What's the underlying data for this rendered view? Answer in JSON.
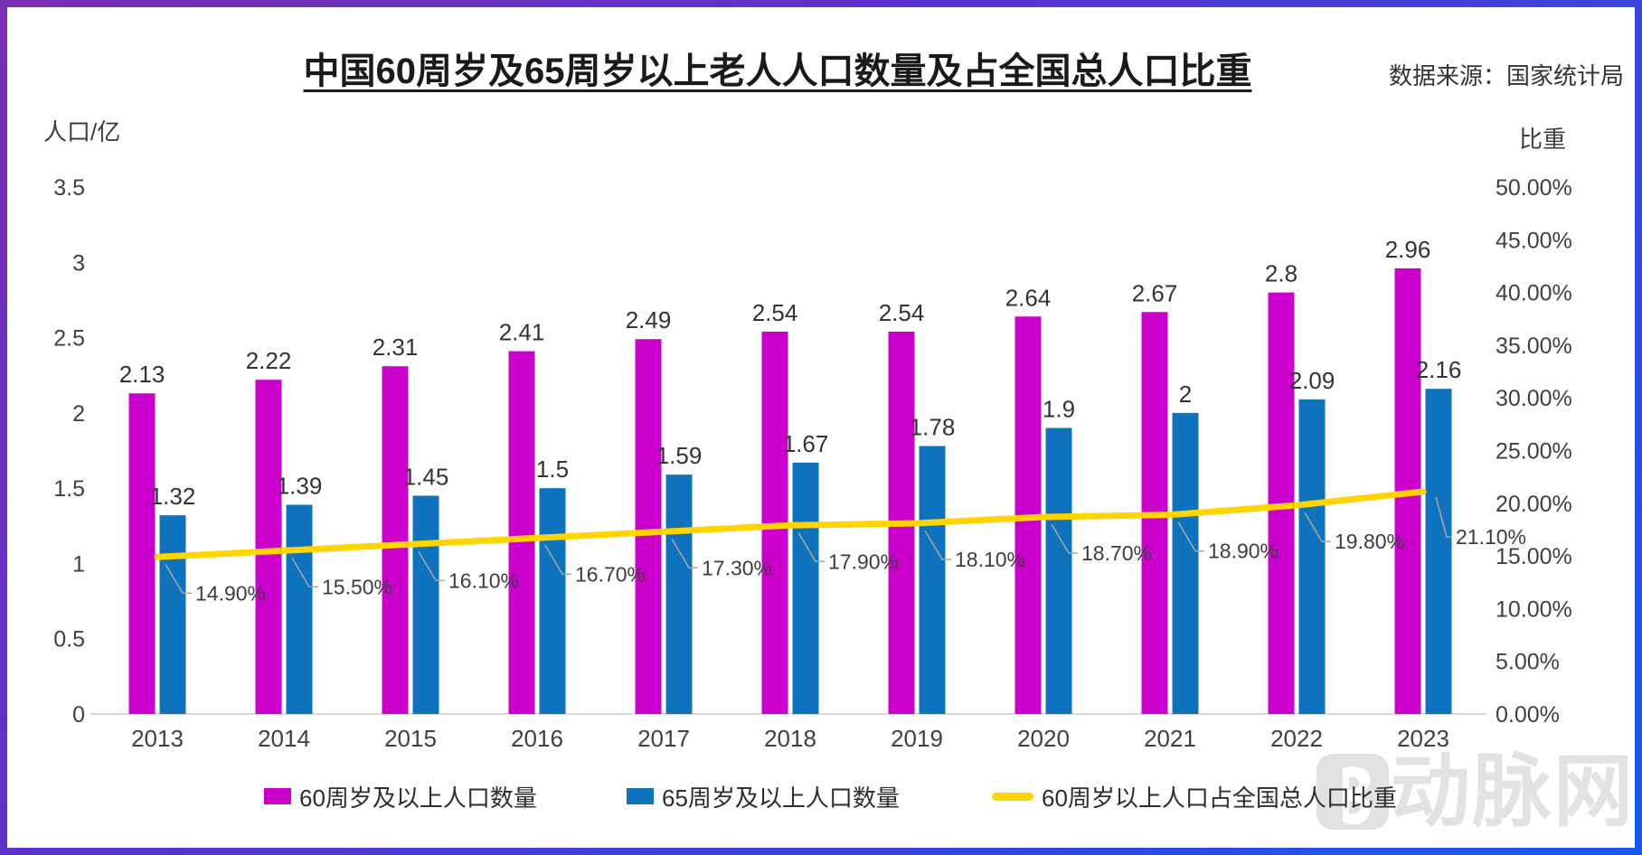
{
  "page": {
    "title": "中国60周岁及65周岁以上老人人口数量及占全国总人口比重",
    "source": "数据来源：国家统计局",
    "watermark": "动脉网"
  },
  "colors": {
    "bar_60plus": "#CC00CC",
    "bar_65plus": "#0E72BD",
    "ratio_line": "#FFD400",
    "leader": "#A6A6A6",
    "axis_line": "#D9D9D9",
    "text": "#404040",
    "watermark": "#E2E2E2",
    "border_from": "#7B2FB5",
    "border_to": "#1659EE"
  },
  "chart_data": {
    "type": "bar",
    "subtype": "grouped-bars-with-line-combo",
    "title": "中国60周岁及65周岁以上老人人口数量及占全国总人口比重",
    "categories": [
      "2013",
      "2014",
      "2015",
      "2016",
      "2017",
      "2018",
      "2019",
      "2020",
      "2021",
      "2022",
      "2023"
    ],
    "series": [
      {
        "name": "60周岁及以上人口数量",
        "type": "bar",
        "axis": "left",
        "color": "#CC00CC",
        "values": [
          2.13,
          2.22,
          2.31,
          2.41,
          2.49,
          2.54,
          2.54,
          2.64,
          2.67,
          2.8,
          2.96
        ],
        "labels": [
          "2.13",
          "2.22",
          "2.31",
          "2.41",
          "2.49",
          "2.54",
          "2.54",
          "2.64",
          "2.67",
          "2.8",
          "2.96"
        ]
      },
      {
        "name": "65周岁及以上人口数量",
        "type": "bar",
        "axis": "left",
        "color": "#0E72BD",
        "values": [
          1.32,
          1.39,
          1.45,
          1.5,
          1.59,
          1.67,
          1.78,
          1.9,
          2,
          2.09,
          2.16
        ],
        "labels": [
          "1.32",
          "1.39",
          "1.45",
          "1.5",
          "1.59",
          "1.67",
          "1.78",
          "1.9",
          "2",
          "2.09",
          "2.16"
        ]
      },
      {
        "name": "60周岁以上人口占全国总人口比重",
        "type": "line",
        "axis": "right",
        "color": "#FFD400",
        "values": [
          14.9,
          15.5,
          16.1,
          16.7,
          17.3,
          17.9,
          18.1,
          18.7,
          18.9,
          19.8,
          21.1
        ],
        "labels": [
          "14.90%",
          "15.50%",
          "16.10%",
          "16.70%",
          "17.30%",
          "17.90%",
          "18.10%",
          "18.70%",
          "18.90%",
          "19.80%",
          "21.10%"
        ]
      }
    ],
    "left_axis": {
      "title": "人口/亿",
      "min": 0,
      "max": 3.5,
      "step": 0.5,
      "tick_labels": [
        "0",
        "0.5",
        "1",
        "1.5",
        "2",
        "2.5",
        "3",
        "3.5"
      ]
    },
    "right_axis": {
      "title": "比重",
      "min": 0,
      "max": 50,
      "step": 5,
      "tick_labels": [
        "0.00%",
        "5.00%",
        "10.00%",
        "15.00%",
        "20.00%",
        "25.00%",
        "30.00%",
        "35.00%",
        "40.00%",
        "45.00%",
        "50.00%"
      ]
    },
    "grid": false,
    "legend_position": "bottom"
  }
}
